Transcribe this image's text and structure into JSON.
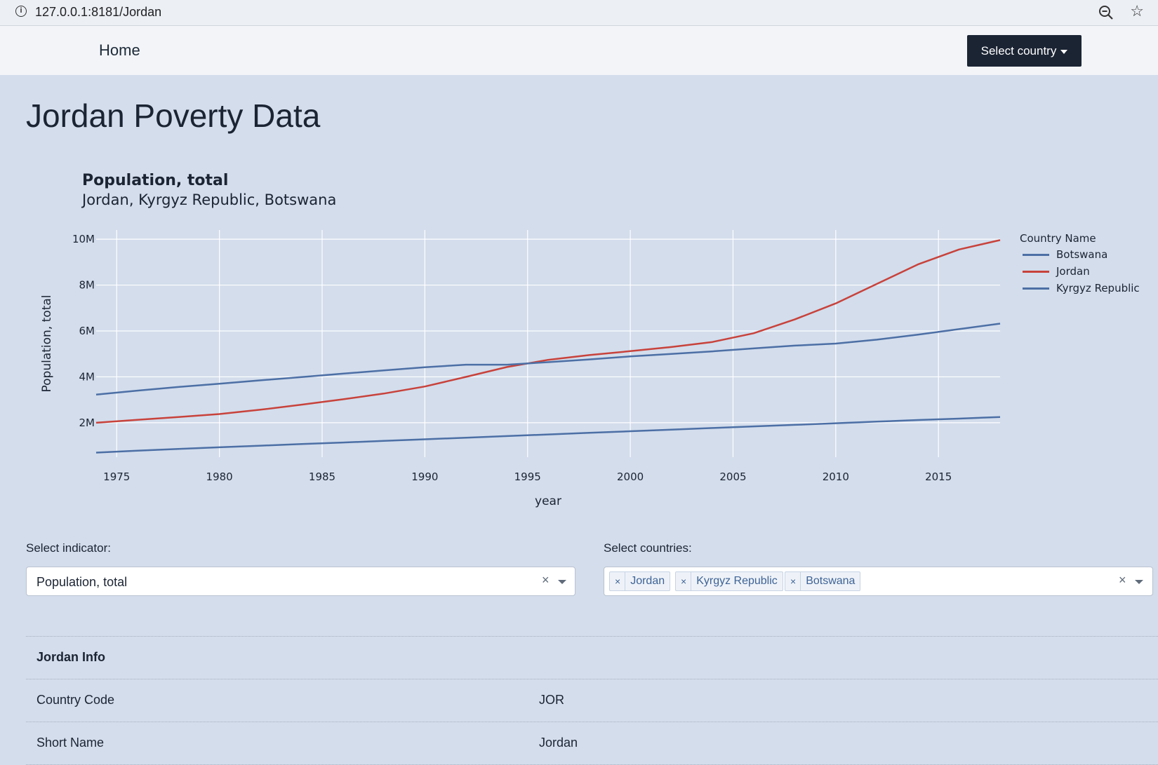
{
  "browser": {
    "url": "127.0.0.1:8181/Jordan",
    "info_icon": "info-icon",
    "zoom_icon": "zoom-out-icon",
    "star_icon": "star-icon"
  },
  "navbar": {
    "home_label": "Home",
    "select_country_label": "Select country"
  },
  "page": {
    "title": "Jordan Poverty Data"
  },
  "chart_data": {
    "type": "line",
    "title": "Population, total",
    "subtitle": "Jordan, Kyrgyz Republic, Botswana",
    "xlabel": "year",
    "ylabel": "Population, total",
    "xlim": [
      1974,
      2018
    ],
    "ylim": [
      500000,
      10400000
    ],
    "x_ticks": [
      1975,
      1980,
      1985,
      1990,
      1995,
      2000,
      2005,
      2010,
      2015
    ],
    "y_ticks": [
      2000000,
      4000000,
      6000000,
      8000000,
      10000000
    ],
    "y_tick_labels": [
      "2M",
      "4M",
      "6M",
      "8M",
      "10M"
    ],
    "grid": true,
    "legend_title": "Country Name",
    "legend_position": "right",
    "x": [
      1974,
      1976,
      1978,
      1980,
      1982,
      1984,
      1986,
      1988,
      1990,
      1992,
      1994,
      1996,
      1998,
      2000,
      2002,
      2004,
      2006,
      2008,
      2010,
      2012,
      2014,
      2016,
      2018
    ],
    "series": [
      {
        "name": "Botswana",
        "color": "#4c6fa5",
        "values": [
          700000,
          780000,
          860000,
          930000,
          1000000,
          1070000,
          1140000,
          1210000,
          1280000,
          1350000,
          1420000,
          1490000,
          1560000,
          1630000,
          1700000,
          1770000,
          1840000,
          1910000,
          1980000,
          2050000,
          2120000,
          2180000,
          2250000
        ]
      },
      {
        "name": "Jordan",
        "color": "#c8423b",
        "values": [
          2000000,
          2130000,
          2250000,
          2380000,
          2570000,
          2790000,
          3020000,
          3270000,
          3580000,
          4000000,
          4430000,
          4740000,
          4950000,
          5120000,
          5300000,
          5520000,
          5900000,
          6500000,
          7200000,
          8050000,
          8900000,
          9550000,
          9960000
        ]
      },
      {
        "name": "Kyrgyz Republic",
        "color": "#4c6fa5",
        "values": [
          3230000,
          3400000,
          3560000,
          3700000,
          3850000,
          3990000,
          4140000,
          4280000,
          4420000,
          4530000,
          4530000,
          4640000,
          4760000,
          4890000,
          5000000,
          5110000,
          5240000,
          5360000,
          5450000,
          5620000,
          5840000,
          6080000,
          6320000
        ]
      }
    ]
  },
  "controls": {
    "indicator_label": "Select indicator:",
    "indicator_value": "Population, total",
    "countries_label": "Select countries:",
    "selected_countries": [
      "Jordan",
      "Kyrgyz Republic",
      "Botswana"
    ],
    "clear_symbol": "×",
    "tag_remove_symbol": "×"
  },
  "info": {
    "header": "Jordan Info",
    "rows": [
      {
        "key": "Country Code",
        "value": "JOR"
      },
      {
        "key": "Short Name",
        "value": "Jordan"
      }
    ]
  }
}
